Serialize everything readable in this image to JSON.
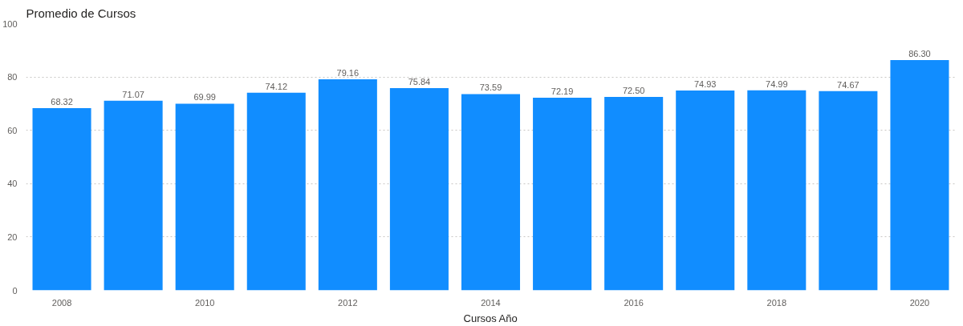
{
  "chart_data": {
    "type": "bar",
    "title": "Promedio de Cursos",
    "xlabel": "Cursos Año",
    "x": [
      2008,
      2009,
      2010,
      2011,
      2012,
      2013,
      2014,
      2015,
      2016,
      2017,
      2018,
      2019,
      2020
    ],
    "values": [
      68.32,
      71.07,
      69.99,
      74.12,
      79.16,
      75.84,
      73.59,
      72.19,
      72.5,
      74.93,
      74.99,
      74.67,
      86.3
    ],
    "value_labels": [
      "68.32",
      "71.07",
      "69.99",
      "74.12",
      "79.16",
      "75.84",
      "73.59",
      "72.19",
      "72.50",
      "74.93",
      "74.99",
      "74.67",
      "86.30"
    ],
    "color": "#118dff",
    "xlim": [
      2007.5,
      2020.5
    ],
    "xticks": [
      2008,
      2010,
      2012,
      2014,
      2016,
      2018,
      2020
    ],
    "ylim": [
      0,
      100
    ],
    "yticks": [
      0,
      20,
      40,
      60,
      80,
      100
    ],
    "grid": "y"
  }
}
